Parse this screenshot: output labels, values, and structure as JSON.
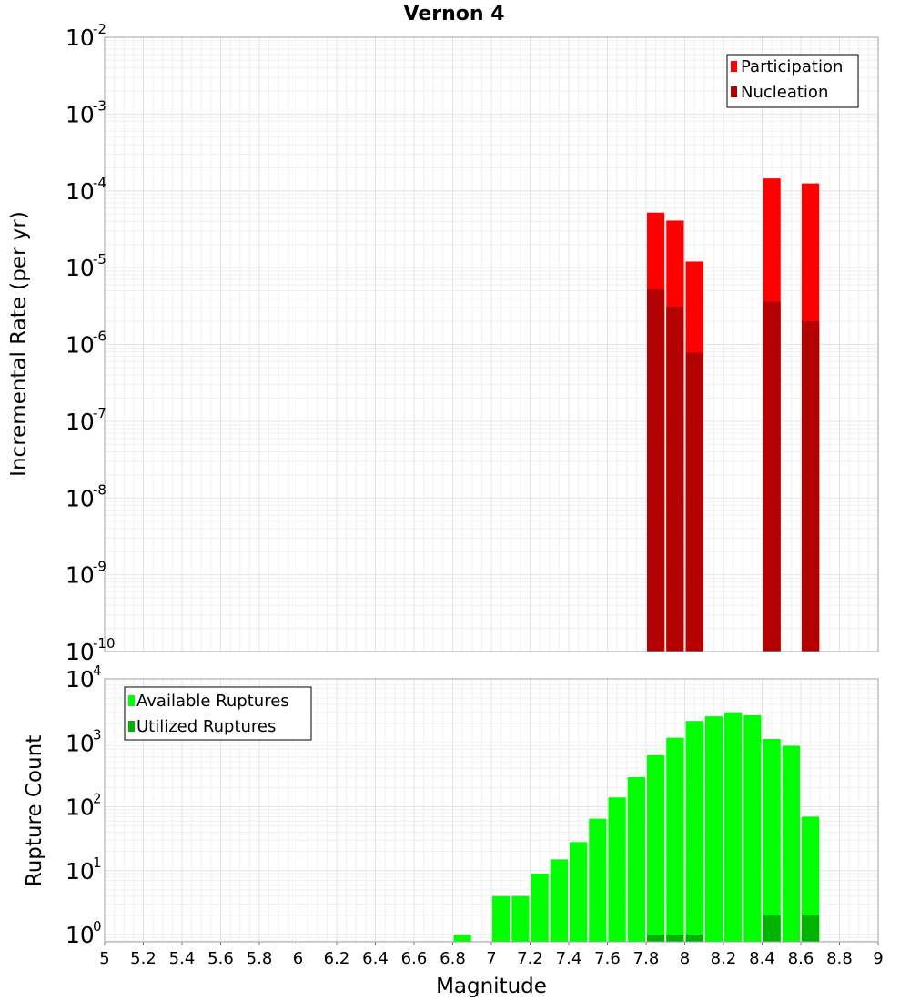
{
  "chart_data": [
    {
      "type": "bar",
      "title": "Vernon 4",
      "ylabel": "Incremental Rate (per yr)",
      "xlabel": "",
      "yscale": "log",
      "ylim": [
        1e-10,
        0.01
      ],
      "xlim": [
        5,
        9
      ],
      "y_ticks": [
        {
          "base": "10",
          "exp": "-10"
        },
        {
          "base": "10",
          "exp": "-9"
        },
        {
          "base": "10",
          "exp": "-8"
        },
        {
          "base": "10",
          "exp": "-7"
        },
        {
          "base": "10",
          "exp": "-6"
        },
        {
          "base": "10",
          "exp": "-5"
        },
        {
          "base": "10",
          "exp": "-4"
        },
        {
          "base": "10",
          "exp": "-3"
        },
        {
          "base": "10",
          "exp": "-2"
        }
      ],
      "legend_position": "top-right",
      "grid": true,
      "bar_width": 0.1,
      "series": [
        {
          "name": "Participation",
          "color": "#ff0000",
          "x": [
            7.85,
            7.95,
            8.05,
            8.45,
            8.65
          ],
          "values": [
            5.2e-05,
            4.1e-05,
            1.2e-05,
            0.000145,
            0.000125
          ]
        },
        {
          "name": "Nucleation",
          "color": "#b30000",
          "x": [
            7.85,
            7.95,
            8.05,
            8.45,
            8.65
          ],
          "values": [
            5.2e-06,
            3.1e-06,
            7.8e-07,
            3.6e-06,
            2e-06
          ]
        }
      ]
    },
    {
      "type": "bar",
      "title": "",
      "ylabel": "Rupture Count",
      "xlabel": "Magnitude",
      "yscale": "log",
      "ylim": [
        0.77,
        10000
      ],
      "xlim": [
        5,
        9
      ],
      "x_ticks": [
        "5",
        "5.2",
        "5.4",
        "5.6",
        "5.8",
        "6",
        "6.2",
        "6.4",
        "6.6",
        "6.8",
        "7",
        "7.2",
        "7.4",
        "7.6",
        "7.8",
        "8",
        "8.2",
        "8.4",
        "8.6",
        "8.8",
        "9"
      ],
      "y_ticks": [
        {
          "base": "10",
          "exp": "0"
        },
        {
          "base": "10",
          "exp": "1"
        },
        {
          "base": "10",
          "exp": "2"
        },
        {
          "base": "10",
          "exp": "3"
        },
        {
          "base": "10",
          "exp": "4"
        }
      ],
      "legend_position": "top-left",
      "grid": true,
      "bar_width": 0.1,
      "series": [
        {
          "name": "Available Ruptures",
          "color": "#00ff00",
          "x": [
            6.85,
            7.05,
            7.15,
            7.25,
            7.35,
            7.45,
            7.55,
            7.65,
            7.75,
            7.85,
            7.95,
            8.05,
            8.15,
            8.25,
            8.35,
            8.45,
            8.55,
            8.65
          ],
          "values": [
            1,
            4,
            4,
            9,
            15,
            28,
            65,
            140,
            290,
            640,
            1200,
            2200,
            2600,
            3000,
            2700,
            1150,
            900,
            70
          ]
        },
        {
          "name": "Utilized Ruptures",
          "color": "#00b300",
          "x": [
            7.85,
            7.95,
            8.05,
            8.45,
            8.65
          ],
          "values": [
            1,
            1,
            1,
            2,
            2
          ]
        }
      ]
    }
  ]
}
